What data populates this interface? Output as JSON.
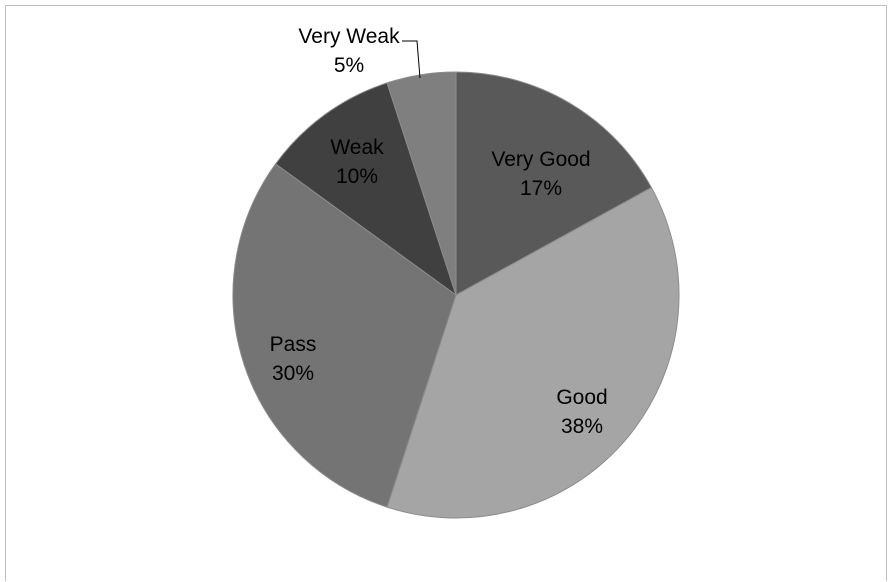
{
  "chart_data": {
    "type": "pie",
    "title": "",
    "start_angle_deg": 0,
    "direction": "clockwise",
    "slices": [
      {
        "label": "Very Good",
        "value": 17,
        "percent_label": "17%",
        "color": "#595959"
      },
      {
        "label": "Good",
        "value": 38,
        "percent_label": "38%",
        "color": "#a5a5a5"
      },
      {
        "label": "Pass",
        "value": 30,
        "percent_label": "30%",
        "color": "#747474"
      },
      {
        "label": "Weak",
        "value": 10,
        "percent_label": "10%",
        "color": "#404040"
      },
      {
        "label": "Very Weak",
        "value": 5,
        "percent_label": "5%",
        "color": "#7f7f7f"
      }
    ],
    "slice_border_color": "#8c8c8c",
    "leader_line_color": "#000000",
    "legend": "none"
  }
}
